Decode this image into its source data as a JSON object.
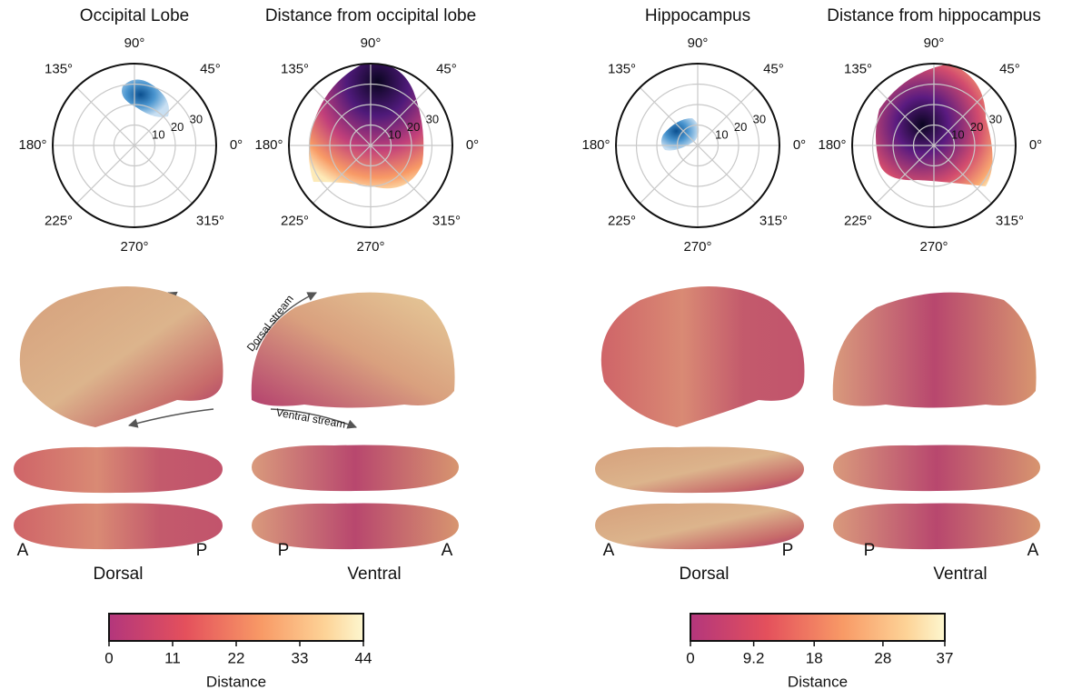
{
  "panels": [
    {
      "title": "Occipital Lobe"
    },
    {
      "title": "Distance from occipital lobe"
    },
    {
      "title": "Hippocampus"
    },
    {
      "title": "Distance from hippocampus"
    }
  ],
  "polar": {
    "angle_labels": [
      "0°",
      "45°",
      "90°",
      "135°",
      "180°",
      "225°",
      "270°",
      "315°"
    ],
    "radial_labels": [
      "10",
      "20",
      "30"
    ]
  },
  "annotations": {
    "dorsal_stream": "Dorsal stream",
    "ventral_stream": "Ventral stream"
  },
  "brain_groups": [
    {
      "dorsal": {
        "label": "Dorsal",
        "left": "A",
        "right": "P"
      },
      "ventral": {
        "label": "Ventral",
        "left": "P",
        "right": "A"
      }
    },
    {
      "dorsal": {
        "label": "Dorsal",
        "left": "A",
        "right": "P"
      },
      "ventral": {
        "label": "Ventral",
        "left": "P",
        "right": "A"
      }
    }
  ],
  "colorbars": [
    {
      "lim": [
        0,
        44
      ],
      "ticks": [
        0,
        11,
        22,
        33,
        44
      ],
      "label": "Distance"
    },
    {
      "lim": [
        0,
        37
      ],
      "ticks": [
        0,
        9.2,
        18,
        28,
        37
      ],
      "label": "Distance"
    }
  ]
}
